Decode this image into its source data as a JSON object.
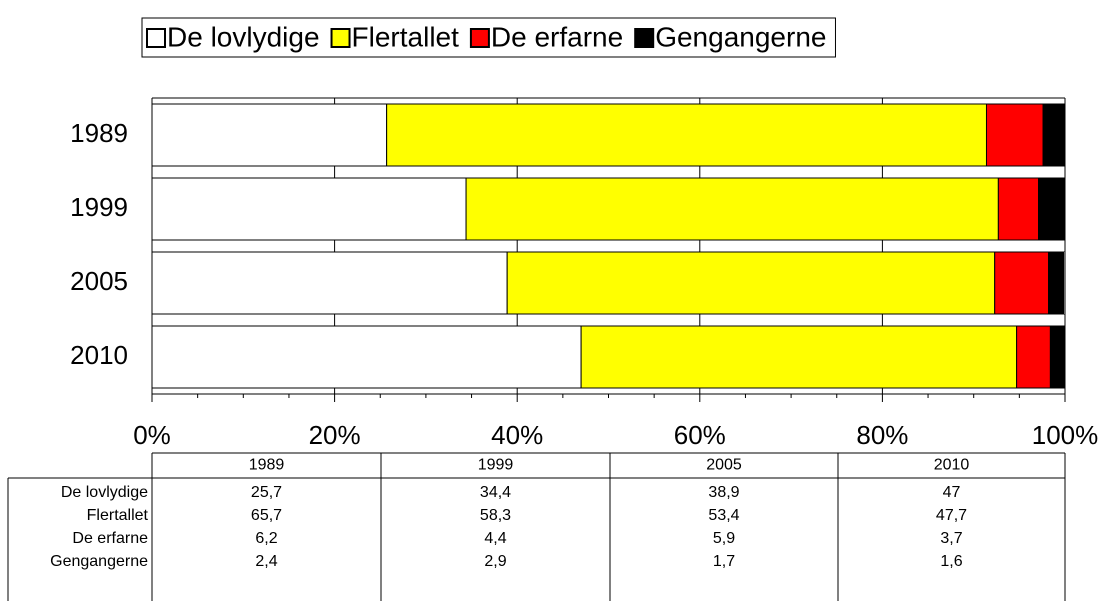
{
  "chart_data": {
    "type": "stacked_bar_horizontal",
    "categories": [
      "1989",
      "1999",
      "2005",
      "2010"
    ],
    "series": [
      {
        "name": "De lovlydige",
        "color": "#ffffff",
        "values": [
          25.7,
          34.4,
          38.9,
          47
        ],
        "value_labels": [
          "25,7",
          "34,4",
          "38,9",
          "47"
        ]
      },
      {
        "name": "Flertallet",
        "color": "#ffff00",
        "values": [
          65.7,
          58.3,
          53.4,
          47.7
        ],
        "value_labels": [
          "65,7",
          "58,3",
          "53,4",
          "47,7"
        ]
      },
      {
        "name": "De erfarne",
        "color": "#ff0000",
        "values": [
          6.2,
          4.4,
          5.9,
          3.7
        ],
        "value_labels": [
          "6,2",
          "4,4",
          "5,9",
          "3,7"
        ]
      },
      {
        "name": "Gengangerne",
        "color": "#000000",
        "values": [
          2.4,
          2.9,
          1.7,
          1.6
        ],
        "value_labels": [
          "2,4",
          "2,9",
          "1,7",
          "1,6"
        ]
      }
    ],
    "xlim": [
      0,
      100
    ],
    "xticks": [
      {
        "value": 0,
        "label": "0%"
      },
      {
        "value": 20,
        "label": "20%"
      },
      {
        "value": 40,
        "label": "40%"
      },
      {
        "value": 60,
        "label": "60%"
      },
      {
        "value": 80,
        "label": "80%"
      },
      {
        "value": 100,
        "label": "100%"
      }
    ],
    "grid": true,
    "legend": "top"
  }
}
